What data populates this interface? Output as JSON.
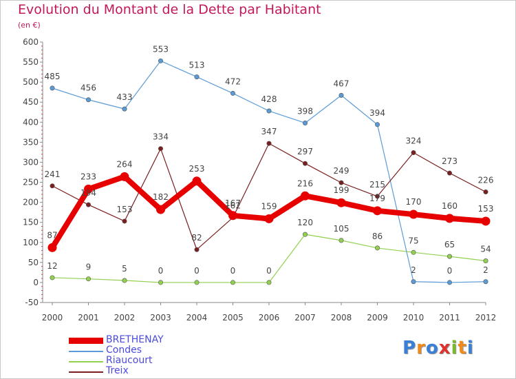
{
  "header": {
    "title": "Evolution du Montant de la Dette par Habitant",
    "subtitle": "(en €)"
  },
  "logo": {
    "text": "Proxiti",
    "letters": [
      "P",
      "r",
      "o",
      "x",
      "i",
      "t",
      "i"
    ],
    "colors": [
      "#3a7fd8",
      "#f08a1c",
      "#3a7fd8",
      "#e0322d",
      "#7ab82e",
      "#f08a1c",
      "#3a7fd8"
    ]
  },
  "chart_data": {
    "type": "line",
    "title": "Evolution du Montant de la Dette par Habitant",
    "subtitle": "(en €)",
    "x": [
      "2000",
      "2001",
      "2002",
      "2003",
      "2004",
      "2005",
      "2006",
      "2007",
      "2008",
      "2009",
      "2010",
      "2011",
      "2012"
    ],
    "ylim": [
      -50,
      600
    ],
    "yticks": [
      "-50",
      "0",
      "50",
      "100",
      "150",
      "200",
      "250",
      "300",
      "350",
      "400",
      "450",
      "500",
      "550",
      "600"
    ],
    "grid": false,
    "legend_position": "bottom-left",
    "series": [
      {
        "name": "BRETHENAY",
        "color": "#e60000",
        "values": [
          87,
          233,
          264,
          182,
          253,
          167,
          159,
          216,
          199,
          179,
          170,
          160,
          153
        ]
      },
      {
        "name": "Condes",
        "color": "#5b9bd5",
        "values": [
          485,
          456,
          433,
          553,
          513,
          472,
          428,
          398,
          467,
          394,
          2,
          0,
          2
        ]
      },
      {
        "name": "Riaucourt",
        "color": "#92d050",
        "values": [
          12,
          9,
          5,
          0,
          0,
          0,
          0,
          120,
          105,
          86,
          75,
          65,
          54
        ]
      },
      {
        "name": "Treix",
        "color": "#7a1f1f",
        "values": [
          241,
          194,
          153,
          334,
          82,
          162,
          347,
          297,
          249,
          215,
          324,
          273,
          226
        ]
      }
    ]
  }
}
